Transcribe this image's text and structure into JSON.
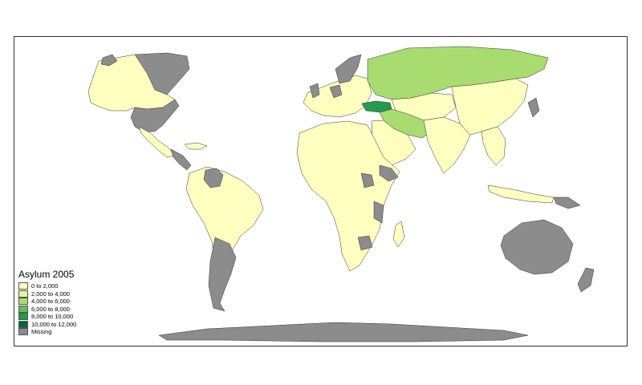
{
  "legend": {
    "title": "Asylum 2005",
    "items": [
      {
        "label": "0 to 2,000",
        "color": "#ffffc0"
      },
      {
        "label": "2,000 to 4,000",
        "color": "#e6f5a0"
      },
      {
        "label": "4,000 to 6,000",
        "color": "#a8dc70"
      },
      {
        "label": "6,000 to 8,000",
        "color": "#5fbd5a"
      },
      {
        "label": "8,000 to 10,000",
        "color": "#249a4e"
      },
      {
        "label": "10,000 to 12,000",
        "color": "#006837"
      },
      {
        "label": "Missing",
        "color": "#8c8c8c"
      }
    ]
  },
  "colors": {
    "low": "#ffffc0",
    "mid": "#a8dc70",
    "high": "#249a4e",
    "missing": "#8c8c8c",
    "border": "#333333"
  }
}
